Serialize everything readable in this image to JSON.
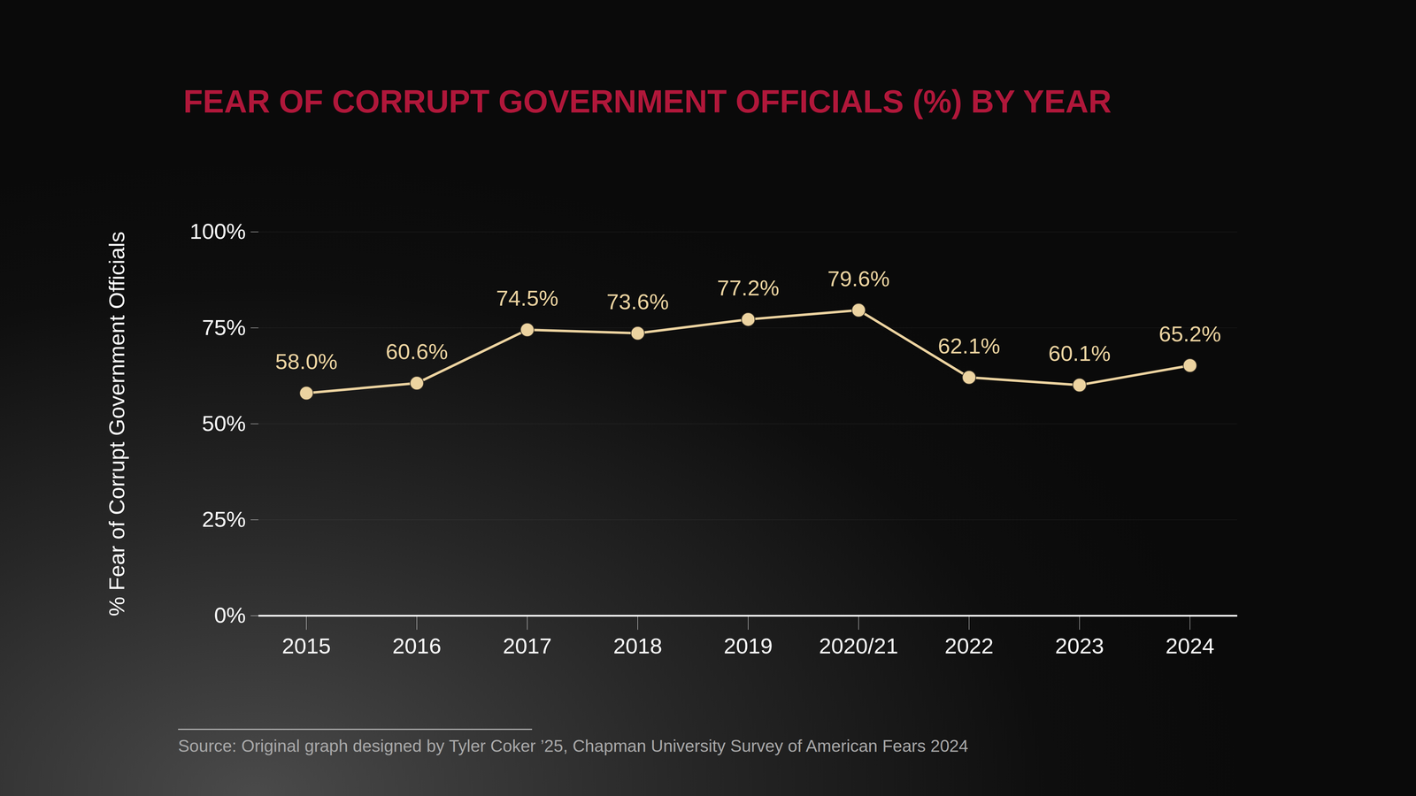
{
  "chart_data": {
    "type": "line",
    "title": "FEAR OF CORRUPT GOVERNMENT OFFICIALS (%) BY YEAR",
    "y_label": "% Fear of Corrupt Government Officials",
    "source": "Source: Original graph designed by Tyler Coker ’25, Chapman University Survey of American Fears 2024",
    "categories": [
      "2015",
      "2016",
      "2017",
      "2018",
      "2019",
      "2020/21",
      "2022",
      "2023",
      "2024"
    ],
    "values": [
      58.0,
      60.6,
      74.5,
      73.6,
      77.2,
      79.6,
      62.1,
      60.1,
      65.2
    ],
    "value_labels": [
      "58.0%",
      "60.6%",
      "74.5%",
      "73.6%",
      "77.2%",
      "79.6%",
      "62.1%",
      "60.1%",
      "65.2%"
    ],
    "color": "#ecd3a0",
    "marker": "circle",
    "line_style": "solid",
    "ylim": [
      0,
      100
    ],
    "yticks": [
      {
        "value": 0,
        "label": "0%"
      },
      {
        "value": 25,
        "label": "25%"
      },
      {
        "value": 50,
        "label": "50%"
      },
      {
        "value": 75,
        "label": "75%"
      },
      {
        "value": 100,
        "label": "100%"
      }
    ],
    "grid": true,
    "data_labels": true
  }
}
